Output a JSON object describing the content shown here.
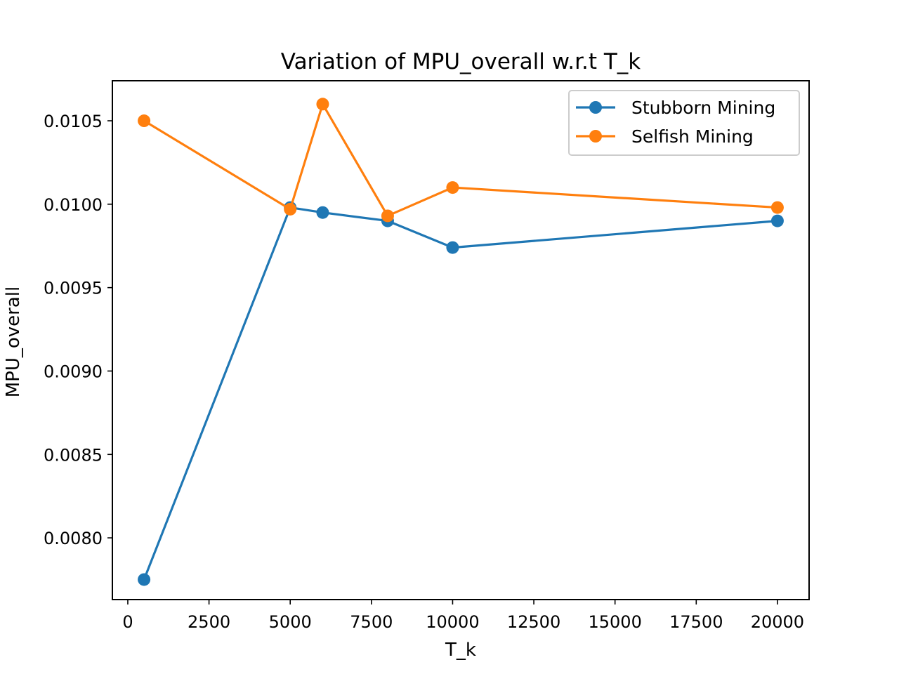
{
  "chart_data": {
    "type": "line",
    "title": "Variation of MPU_overall w.r.t T_k",
    "xlabel": "T_k",
    "ylabel": "MPU_overall",
    "xlim": [
      -475,
      20975
    ],
    "ylim": [
      0.00763,
      0.01074
    ],
    "xticks": [
      0,
      2500,
      5000,
      7500,
      10000,
      12500,
      15000,
      17500,
      20000
    ],
    "xtick_labels": [
      "0",
      "2500",
      "5000",
      "7500",
      "10000",
      "12500",
      "15000",
      "17500",
      "20000"
    ],
    "yticks": [
      0.008,
      0.0085,
      0.009,
      0.0095,
      0.01,
      0.0105
    ],
    "ytick_labels": [
      "0.0080",
      "0.0085",
      "0.0090",
      "0.0095",
      "0.0100",
      "0.0105"
    ],
    "grid": false,
    "legend_position": "top-right",
    "x": [
      500,
      5000,
      6000,
      8000,
      10000,
      20000
    ],
    "series": [
      {
        "name": "Stubborn Mining",
        "color": "#1f77b4",
        "marker": "circle",
        "values": [
          0.00775,
          0.00998,
          0.00995,
          0.0099,
          0.00974,
          0.0099
        ]
      },
      {
        "name": "Selfish Mining",
        "color": "#ff7f0e",
        "marker": "circle",
        "values": [
          0.0105,
          0.00997,
          0.0106,
          0.00993,
          0.0101,
          0.00998
        ]
      }
    ]
  }
}
